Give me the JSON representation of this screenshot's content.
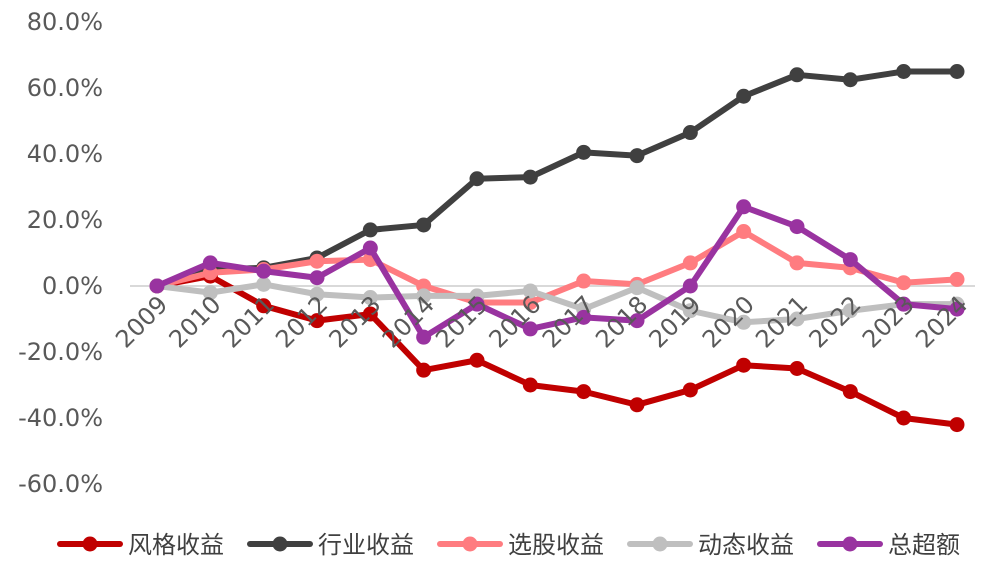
{
  "chart_data": {
    "type": "line",
    "title": "",
    "xlabel": "",
    "ylabel": "",
    "ylim": [
      -60,
      80
    ],
    "y_ticks": [
      "80.0%",
      "60.0%",
      "40.0%",
      "20.0%",
      "0.0%",
      "-20.0%",
      "-40.0%",
      "-60.0%"
    ],
    "categories": [
      "2009",
      "2010",
      "2011",
      "2012",
      "2013",
      "2014",
      "2015",
      "2016",
      "2017",
      "2018",
      "2019",
      "2020",
      "2021",
      "2022",
      "2023",
      "2024"
    ],
    "grid": false,
    "legend_position": "bottom",
    "series": [
      {
        "name": "风格收益",
        "color": "#c00000",
        "values": [
          0,
          3,
          -6,
          -10.5,
          -8.5,
          -25.5,
          -22.5,
          -30,
          -32,
          -36,
          -31.5,
          -24,
          -25,
          -32,
          -40,
          -42
        ]
      },
      {
        "name": "行业收益",
        "color": "#404040",
        "values": [
          0,
          5,
          5.5,
          8.5,
          17,
          18.5,
          32.5,
          33,
          40.5,
          39.5,
          46.5,
          57.5,
          64,
          62.5,
          65,
          65
        ]
      },
      {
        "name": "选股收益",
        "color": "#ff7c80",
        "values": [
          0,
          4,
          5,
          7.5,
          8,
          0,
          -5,
          -5,
          1.5,
          0.5,
          7,
          16.5,
          7,
          5.5,
          1,
          2
        ]
      },
      {
        "name": "动态收益",
        "color": "#bfbfbf",
        "values": [
          0,
          -2,
          0.5,
          -2.5,
          -3.5,
          -3,
          -3,
          -1.5,
          -7,
          -0.5,
          -7.5,
          -11,
          -10,
          -7.5,
          -5.5,
          -5.5
        ]
      },
      {
        "name": "总超额",
        "color": "#9933a0",
        "values": [
          0,
          7,
          4.5,
          2.5,
          11.5,
          -15.5,
          -5.5,
          -13,
          -9.5,
          -10.5,
          0,
          24,
          18,
          8,
          -5.5,
          -7
        ]
      }
    ]
  }
}
